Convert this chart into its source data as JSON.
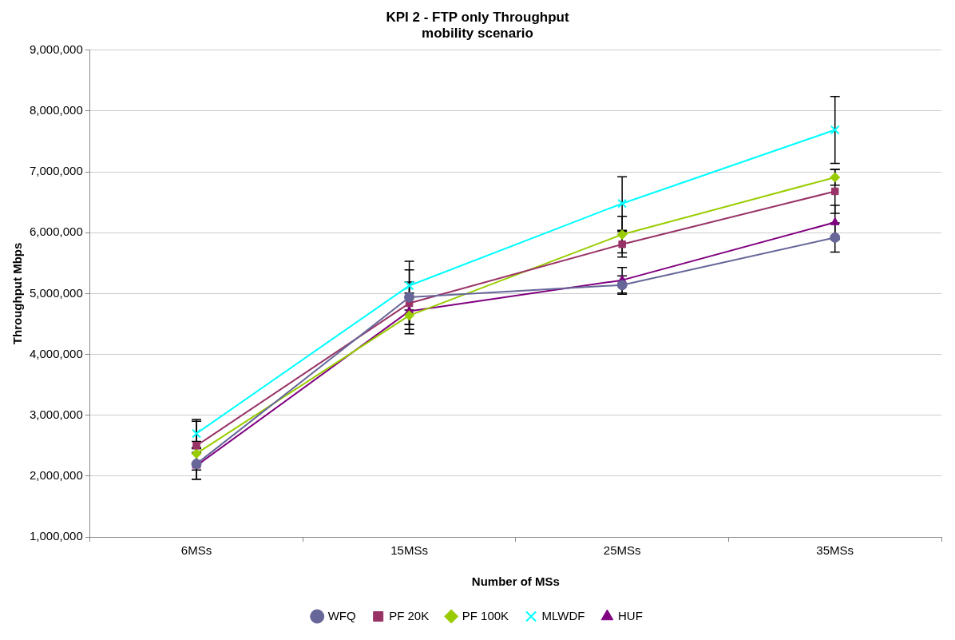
{
  "chart_data": {
    "type": "line",
    "title": [
      "KPI 2 - FTP only Throughput",
      "mobility scenario"
    ],
    "xlabel": "Number of MSs",
    "ylabel": "Throughput Mbps",
    "categories": [
      "6MSs",
      "15MSs",
      "25MSs",
      "35MSs"
    ],
    "series": [
      {
        "name": "WFQ",
        "color": "#666699",
        "marker": "circle",
        "values": [
          2200000,
          4940000,
          5140000,
          5920000
        ],
        "errors": [
          250000,
          450000,
          150000,
          240000
        ]
      },
      {
        "name": "PF 20K",
        "color": "#993366",
        "marker": "square",
        "values": [
          2500000,
          4840000,
          5810000,
          6680000
        ],
        "errors": [
          400000,
          350000,
          210000,
          360000
        ]
      },
      {
        "name": "PF 100K",
        "color": "#99cc00",
        "marker": "diamond",
        "values": [
          2370000,
          4640000,
          5970000,
          6910000
        ],
        "errors": [
          200000,
          300000,
          300000,
          130000
        ]
      },
      {
        "name": "MLWDF",
        "color": "#00ffff",
        "marker": "cross",
        "values": [
          2700000,
          5130000,
          6480000,
          7690000
        ],
        "errors": [
          230000,
          400000,
          440000,
          550000
        ]
      },
      {
        "name": "HUF",
        "color": "#800080",
        "marker": "triangle",
        "values": [
          2170000,
          4710000,
          5220000,
          6170000
        ],
        "errors": [
          220000,
          300000,
          210000,
          280000
        ]
      }
    ],
    "ylim": [
      1000000,
      9000000
    ],
    "yticks": [
      {
        "value": 1000000,
        "label": "1,000,000"
      },
      {
        "value": 2000000,
        "label": "2,000,000"
      },
      {
        "value": 3000000,
        "label": "3,000,000"
      },
      {
        "value": 4000000,
        "label": "4,000,000"
      },
      {
        "value": 5000000,
        "label": "5,000,000"
      },
      {
        "value": 6000000,
        "label": "6,000,000"
      },
      {
        "value": 7000000,
        "label": "7,000,000"
      },
      {
        "value": 8000000,
        "label": "8,000,000"
      },
      {
        "value": 9000000,
        "label": "9,000,000"
      }
    ],
    "grid": "y",
    "legend": "bottom",
    "line_style": "solid"
  }
}
